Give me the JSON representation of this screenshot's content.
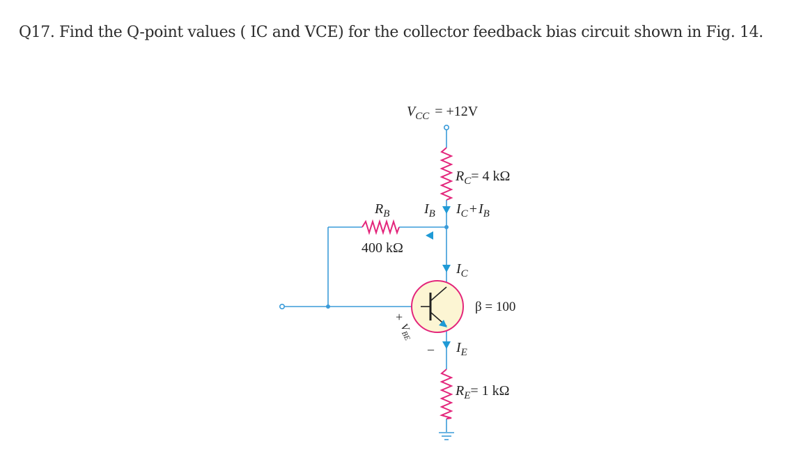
{
  "question": {
    "text": "Q17. Find the Q-point values ( IC and VCE) for the collector feedback bias circuit shown in Fig. 14."
  },
  "circuit": {
    "vcc": {
      "symbol": "V",
      "sub": "CC",
      "value": "= +12V"
    },
    "rc": {
      "symbol": "R",
      "sub": "C",
      "value": "= 4 kΩ"
    },
    "rb": {
      "symbol": "R",
      "sub": "B",
      "value": "400 kΩ"
    },
    "re": {
      "symbol": "R",
      "sub": "E",
      "value": "= 1 kΩ"
    },
    "ib": {
      "symbol": "I",
      "sub": "B"
    },
    "ic_plus_ib": {
      "i1": "I",
      "s1": "C",
      "plus": "+",
      "i2": "I",
      "s2": "B"
    },
    "ic": {
      "symbol": "I",
      "sub": "C"
    },
    "ie": {
      "symbol": "I",
      "sub": "E"
    },
    "beta": "β = 100",
    "vbe": {
      "plus": "+",
      "symbol": "V",
      "sub": "BE",
      "minus": "–"
    },
    "colors": {
      "wire": "#3a9bd9",
      "resistor": "#e3257b",
      "transistor_fill": "#fcf5d3",
      "transistor_ring": "#e3257b",
      "arrow": "#1f9ad6"
    }
  }
}
